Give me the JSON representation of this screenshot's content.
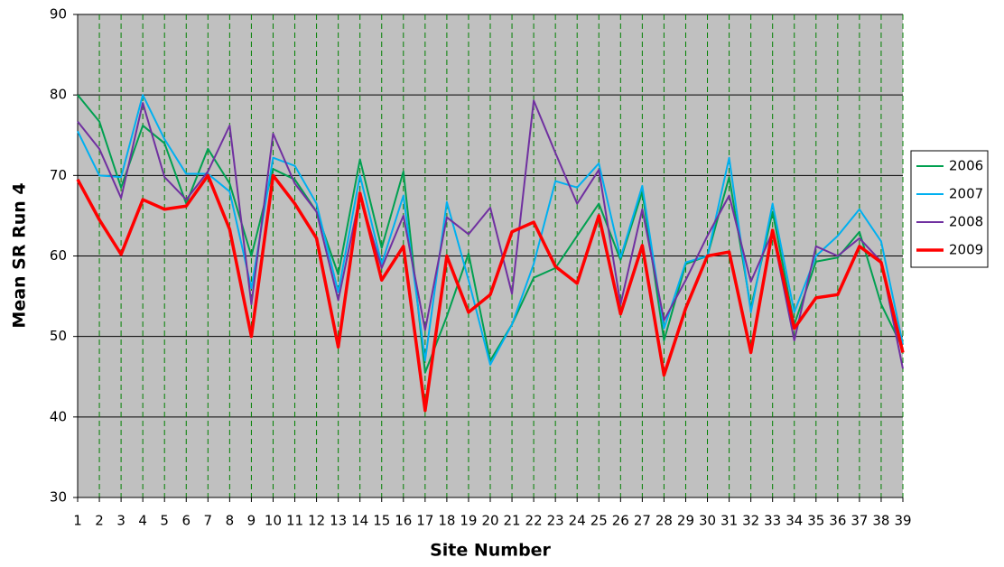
{
  "chart_data": {
    "type": "line",
    "x_label": "Site Number",
    "y_label": "Mean SR Run 4",
    "x": [
      1,
      2,
      3,
      4,
      5,
      6,
      7,
      8,
      9,
      10,
      11,
      12,
      13,
      14,
      15,
      16,
      17,
      18,
      19,
      20,
      21,
      22,
      23,
      24,
      25,
      26,
      27,
      28,
      29,
      30,
      31,
      32,
      33,
      34,
      35,
      36,
      37,
      38,
      39
    ],
    "xlim": [
      1,
      39
    ],
    "ylim": [
      30,
      90
    ],
    "yticks": [
      30,
      40,
      50,
      60,
      70,
      80,
      90
    ],
    "grid": true,
    "legend": "right",
    "series": [
      {
        "name": "2006",
        "color": "#00a050",
        "values": [
          80,
          76.7,
          68.5,
          76.2,
          74,
          66.5,
          73.3,
          69,
          60,
          70.8,
          69.5,
          65.5,
          57.7,
          72,
          61,
          70.5,
          45.5,
          52.5,
          60.3,
          47,
          51.5,
          57.3,
          58.5,
          62.5,
          66.5,
          59.5,
          68,
          49.5,
          59,
          60,
          69.8,
          53.5,
          65.5,
          51.5,
          59.3,
          59.8,
          63,
          54,
          48.5
        ]
      },
      {
        "name": "2007",
        "color": "#00b0f0",
        "values": [
          75.5,
          70,
          69.8,
          80,
          74.5,
          70.2,
          70.2,
          68,
          56,
          72.2,
          71.2,
          66.5,
          55.5,
          70,
          59,
          67.5,
          47,
          66.7,
          57,
          46.5,
          51.5,
          59,
          69.3,
          68.5,
          71.5,
          59.8,
          68.7,
          51,
          59.2,
          60,
          72.2,
          53,
          66.5,
          53,
          60,
          62.5,
          65.8,
          61.8,
          49
        ]
      },
      {
        "name": "2008",
        "color": "#7030a0",
        "values": [
          76.7,
          73.3,
          67.2,
          79,
          69.8,
          67,
          70.5,
          76.2,
          54,
          75.2,
          69,
          65.5,
          54.5,
          67.5,
          58.5,
          65,
          50.8,
          64.8,
          62.7,
          66,
          55.3,
          79.3,
          72.8,
          66.5,
          70.7,
          54,
          65.8,
          52,
          57,
          62.5,
          67.5,
          56.8,
          63,
          49.5,
          61.2,
          60,
          62.2,
          59.3,
          46
        ]
      },
      {
        "name": "2009",
        "color": "#ff0000",
        "values": [
          69.5,
          64.5,
          60.2,
          67,
          65.8,
          66.2,
          70,
          63.3,
          50,
          70,
          66.5,
          62.2,
          48.7,
          67.8,
          57,
          61.2,
          40.8,
          60,
          53,
          55.2,
          63,
          64.2,
          58.7,
          56.6,
          65,
          52.8,
          61.3,
          45.2,
          53.5,
          60,
          60.5,
          48,
          63.2,
          51,
          54.8,
          55.2,
          61.2,
          59.2,
          48
        ]
      }
    ]
  }
}
